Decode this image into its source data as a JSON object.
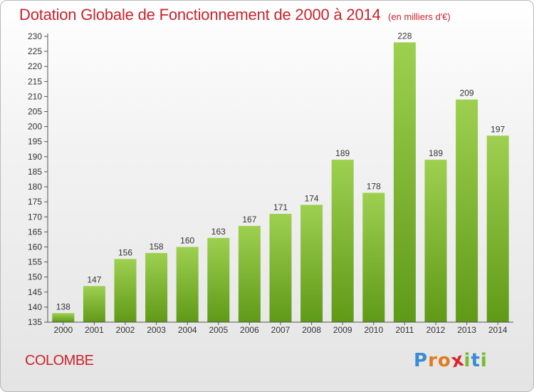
{
  "header": {
    "title": "Dotation Globale de Fonctionnement de 2000 à 2014",
    "unit_note": "(en milliers d'€)"
  },
  "footer": {
    "place_name": "COLOMBE",
    "logo": {
      "letters": [
        "P",
        "r",
        "o",
        "x",
        "i",
        "t",
        "i"
      ],
      "colors": [
        "#3a8ad4",
        "#e27b1c",
        "#e27b1c",
        "#d7262e",
        "#7cb82f",
        "#3a8ad4",
        "#7cb82f"
      ]
    }
  },
  "colors": {
    "bar_light": "#9ed050",
    "bar_dark": "#5f9a17",
    "axis": "#555555",
    "grid": "#dddddd",
    "text": "#333333",
    "accent": "#c8232c"
  },
  "chart_data": {
    "type": "bar",
    "title": "Dotation Globale de Fonctionnement de 2000 à 2014",
    "subtitle": "(en milliers d'€)",
    "xlabel": "",
    "ylabel": "",
    "categories": [
      "2000",
      "2001",
      "2002",
      "2003",
      "2004",
      "2005",
      "2006",
      "2007",
      "2008",
      "2009",
      "2010",
      "2011",
      "2012",
      "2013",
      "2014"
    ],
    "values": [
      138,
      147,
      156,
      158,
      160,
      163,
      167,
      171,
      174,
      189,
      178,
      228,
      189,
      209,
      197
    ],
    "ylim": [
      135,
      230
    ],
    "yticks": [
      135,
      140,
      145,
      150,
      155,
      160,
      165,
      170,
      175,
      180,
      185,
      190,
      195,
      200,
      205,
      210,
      215,
      220,
      225,
      230
    ],
    "grid": false,
    "legend": "none"
  }
}
